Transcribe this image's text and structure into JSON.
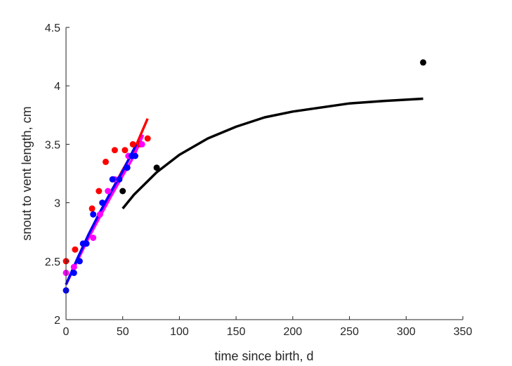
{
  "chart_data": {
    "type": "scatter",
    "title": "",
    "xlabel": "time since birth, d",
    "ylabel": "snout to vent length, cm",
    "xlim": [
      0,
      350
    ],
    "ylim": [
      2,
      4.5
    ],
    "xticks": [
      0,
      50,
      100,
      150,
      200,
      250,
      300,
      350
    ],
    "yticks": [
      2,
      2.5,
      3,
      3.5,
      4,
      4.5
    ],
    "xtick_labels": [
      "0",
      "50",
      "100",
      "150",
      "200",
      "250",
      "300",
      "350"
    ],
    "ytick_labels": [
      "2",
      "2.5",
      "3",
      "3.5",
      "4",
      "4.5"
    ],
    "grid": false,
    "legend": "none",
    "series": [
      {
        "kind": "points",
        "color": "#ff0000",
        "points": [
          [
            0,
            2.5
          ],
          [
            8,
            2.6
          ],
          [
            23,
            2.95
          ],
          [
            29,
            3.1
          ],
          [
            35,
            3.35
          ],
          [
            43,
            3.45
          ],
          [
            52,
            3.45
          ],
          [
            59,
            3.5
          ],
          [
            65,
            3.5
          ],
          [
            72,
            3.55
          ]
        ]
      },
      {
        "kind": "points",
        "color": "#ff00ff",
        "points": [
          [
            0,
            2.4
          ],
          [
            7,
            2.45
          ],
          [
            24,
            2.7
          ],
          [
            30,
            2.9
          ],
          [
            37,
            3.1
          ],
          [
            43,
            3.2
          ],
          [
            55,
            3.4
          ],
          [
            67,
            3.5
          ]
        ]
      },
      {
        "kind": "points",
        "color": "#0000ff",
        "points": [
          [
            0,
            2.25
          ],
          [
            7,
            2.4
          ],
          [
            12,
            2.5
          ],
          [
            15,
            2.65
          ],
          [
            18,
            2.65
          ],
          [
            24,
            2.9
          ],
          [
            32,
            3.0
          ],
          [
            41,
            3.2
          ],
          [
            47,
            3.2
          ],
          [
            54,
            3.3
          ],
          [
            58,
            3.4
          ],
          [
            61,
            3.4
          ]
        ]
      },
      {
        "kind": "points",
        "color": "#000000",
        "points": [
          [
            50,
            3.1
          ],
          [
            80,
            3.3
          ],
          [
            315,
            4.2
          ]
        ]
      },
      {
        "kind": "line",
        "color": "#ff0000",
        "points": [
          [
            0,
            2.3
          ],
          [
            10,
            2.52
          ],
          [
            20,
            2.73
          ],
          [
            30,
            2.92
          ],
          [
            40,
            3.1
          ],
          [
            50,
            3.28
          ],
          [
            60,
            3.45
          ],
          [
            72,
            3.72
          ]
        ]
      },
      {
        "kind": "line",
        "color": "#ff00ff",
        "points": [
          [
            0,
            2.3
          ],
          [
            10,
            2.5
          ],
          [
            20,
            2.7
          ],
          [
            30,
            2.88
          ],
          [
            40,
            3.06
          ],
          [
            50,
            3.23
          ],
          [
            60,
            3.4
          ],
          [
            68,
            3.58
          ]
        ]
      },
      {
        "kind": "line",
        "color": "#0000ff",
        "points": [
          [
            0,
            2.3
          ],
          [
            10,
            2.52
          ],
          [
            20,
            2.73
          ],
          [
            30,
            2.92
          ],
          [
            40,
            3.1
          ],
          [
            50,
            3.27
          ],
          [
            62,
            3.5
          ]
        ]
      },
      {
        "kind": "line",
        "color": "#000000",
        "points": [
          [
            50,
            2.95
          ],
          [
            60,
            3.07
          ],
          [
            80,
            3.26
          ],
          [
            100,
            3.41
          ],
          [
            125,
            3.55
          ],
          [
            150,
            3.65
          ],
          [
            175,
            3.73
          ],
          [
            200,
            3.78
          ],
          [
            250,
            3.85
          ],
          [
            280,
            3.87
          ],
          [
            315,
            3.89
          ]
        ]
      }
    ]
  }
}
